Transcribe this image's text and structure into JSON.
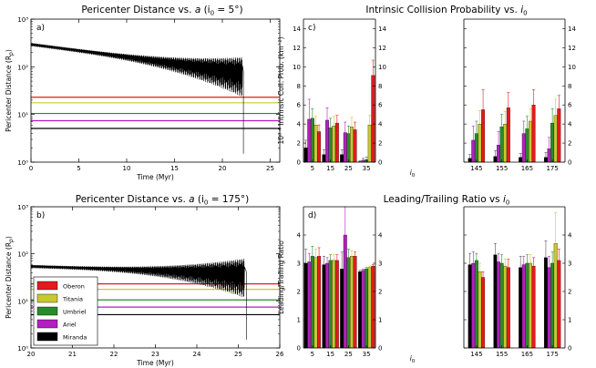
{
  "colors": {
    "Oberon": "#e41a1c",
    "Titania": "#c8c832",
    "Umbriel": "#2a8a2a",
    "Ariel": "#b31fc0",
    "Miranda": "#000000"
  },
  "chart_data": [
    {
      "type": "line",
      "panel": "a)",
      "title": "Pericenter Distance vs. a (i0 = 5°)",
      "title_main": "Pericenter Distance vs. ",
      "title_var": "a",
      "title_paren": " (i",
      "title_sub": "0",
      "title_end": " = 5°)",
      "xlabel": "Time (Myr)",
      "ylabel": "Pericenter Distance (R",
      "ylabel_sub": "p",
      "ylabel_end": ")",
      "xlim": [
        0,
        26
      ],
      "xticks": [
        "0",
        "5",
        "10",
        "15",
        "20",
        "25"
      ],
      "ylim_log10": [
        0,
        3
      ],
      "yticks": [
        "10⁰",
        "10¹",
        "10²",
        "10³"
      ],
      "satellite_lines": [
        {
          "name": "Oberon",
          "value": 23
        },
        {
          "name": "Titania",
          "value": 17.6
        },
        {
          "name": "Umbriel",
          "value": 10.5
        },
        {
          "name": "Ariel",
          "value": 7.4
        },
        {
          "name": "Miranda",
          "value": 5.1
        }
      ],
      "envelope": {
        "start": [
          0,
          300
        ],
        "end": [
          22.1,
          80
        ],
        "spike_to": [
          22.2,
          1.5
        ]
      }
    },
    {
      "type": "line",
      "panel": "b)",
      "title": "Pericenter Distance vs. a (i0 = 175°)",
      "title_main": "Pericenter Distance vs. ",
      "title_var": "a",
      "title_paren": " (i",
      "title_sub": "0",
      "title_end": " = 175°)",
      "xlabel": "Time (Myr)",
      "ylabel": "Pericenter Distance (R",
      "ylabel_sub": "p",
      "ylabel_end": ")",
      "xlim": [
        20,
        26
      ],
      "xticks": [
        "20",
        "21",
        "22",
        "23",
        "24",
        "25",
        "26"
      ],
      "ylim_log10": [
        0,
        3
      ],
      "yticks": [
        "10⁰",
        "10¹",
        "10²",
        "10³"
      ],
      "satellite_lines": [
        {
          "name": "Oberon",
          "value": 23
        },
        {
          "name": "Titania",
          "value": 17.6
        },
        {
          "name": "Umbriel",
          "value": 10.5
        },
        {
          "name": "Ariel",
          "value": 7.4
        },
        {
          "name": "Miranda",
          "value": 5.1
        }
      ],
      "legend": [
        "Oberon",
        "Titania",
        "Umbriel",
        "Ariel",
        "Miranda"
      ],
      "envelope": {
        "start": [
          20,
          55
        ],
        "end": [
          25.15,
          40
        ],
        "spike_to": [
          25.2,
          1.5
        ]
      }
    },
    {
      "type": "bar",
      "panel": "c)",
      "title": "Intrinsic Collision Probability vs. i0",
      "title_main": "Intrinsic Collision Probability vs. ",
      "title_var": "i",
      "title_sub": "0",
      "ylabel": "10⁸ * Intrinsic Coll. Prob. (km⁻²)",
      "xlabel_var": "i",
      "xlabel_sub": "0",
      "ylim": [
        0,
        15
      ],
      "yticks": [
        "0",
        "2",
        "4",
        "6",
        "8",
        "10",
        "12",
        "14"
      ],
      "categories_left": [
        "5",
        "15",
        "25",
        "35"
      ],
      "categories_right": [
        "145",
        "155",
        "165",
        "175"
      ],
      "series_order": [
        "Miranda",
        "Ariel",
        "Umbriel",
        "Titania",
        "Oberon"
      ],
      "values": {
        "5": [
          1.5,
          4.5,
          4.6,
          3.9,
          3.2
        ],
        "15": [
          0.8,
          4.4,
          3.6,
          3.8,
          4.1
        ],
        "25": [
          0.8,
          3.1,
          3.0,
          3.7,
          3.4
        ],
        "35": [
          0.05,
          0.2,
          0.25,
          3.9,
          9.1
        ],
        "145": [
          0.4,
          2.3,
          3.0,
          4.0,
          5.5
        ],
        "155": [
          0.6,
          1.8,
          3.7,
          4.0,
          5.7
        ],
        "165": [
          0.5,
          3.0,
          3.5,
          4.3,
          6.0
        ],
        "175": [
          0.5,
          1.4,
          4.1,
          4.9,
          5.6
        ]
      },
      "errors": {
        "5": [
          0.8,
          2.1,
          1.0,
          0.9,
          0.7
        ],
        "15": [
          0.5,
          1.3,
          1.0,
          1.0,
          0.8
        ],
        "25": [
          0.5,
          1.1,
          0.8,
          1.0,
          0.8
        ],
        "35": [
          0.1,
          0.2,
          0.3,
          1.0,
          1.6
        ],
        "145": [
          0.4,
          1.5,
          1.3,
          1.4,
          2.1
        ],
        "155": [
          0.6,
          1.4,
          1.3,
          1.3,
          1.6
        ],
        "165": [
          0.4,
          1.3,
          1.3,
          1.3,
          1.6
        ],
        "175": [
          0.5,
          1.2,
          1.5,
          1.7,
          1.4
        ]
      }
    },
    {
      "type": "bar",
      "panel": "d)",
      "title": "Leading/Trailing Ratio vs i0",
      "title_main": "Leading/Trailing Ratio vs ",
      "title_var": "i",
      "title_sub": "0",
      "ylabel": "Leading/Trailing Ratio",
      "xlabel_var": "i",
      "xlabel_sub": "0",
      "ylim": [
        0,
        5
      ],
      "yticks": [
        "0",
        "1",
        "2",
        "3",
        "4"
      ],
      "categories_left": [
        "5",
        "15",
        "25",
        "35"
      ],
      "categories_right": [
        "145",
        "155",
        "165",
        "175"
      ],
      "series_order": [
        "Miranda",
        "Ariel",
        "Umbriel",
        "Titania",
        "Oberon"
      ],
      "values": {
        "5": [
          3.0,
          3.05,
          3.25,
          3.2,
          3.25
        ],
        "15": [
          2.95,
          3.0,
          3.1,
          3.1,
          3.1
        ],
        "25": [
          2.8,
          4.0,
          3.2,
          3.25,
          3.25
        ],
        "35": [
          2.7,
          2.75,
          2.8,
          2.85,
          2.9
        ],
        "145": [
          2.95,
          3.0,
          3.1,
          2.7,
          2.5
        ],
        "155": [
          3.3,
          3.05,
          3.0,
          2.9,
          2.85
        ],
        "165": [
          2.85,
          2.95,
          3.0,
          3.0,
          2.9
        ],
        "175": [
          3.2,
          2.85,
          3.0,
          3.7,
          3.1
        ]
      },
      "errors": {
        "5": [
          0.5,
          0.3,
          0.35,
          0.3,
          0.3
        ],
        "15": [
          0.3,
          0.2,
          0.2,
          0.2,
          0.2
        ],
        "25": [
          0.6,
          1.0,
          0.3,
          0.2,
          0.15
        ],
        "35": [
          0.05,
          0.05,
          0.05,
          0.05,
          0.05
        ],
        "145": [
          0.4,
          0.4,
          0.25,
          0.3,
          0.2
        ],
        "155": [
          0.4,
          0.3,
          0.3,
          0.25,
          0.3
        ],
        "165": [
          0.4,
          0.3,
          0.3,
          0.3,
          0.3
        ],
        "175": [
          0.6,
          0.4,
          0.4,
          1.1,
          0.4
        ]
      }
    }
  ]
}
